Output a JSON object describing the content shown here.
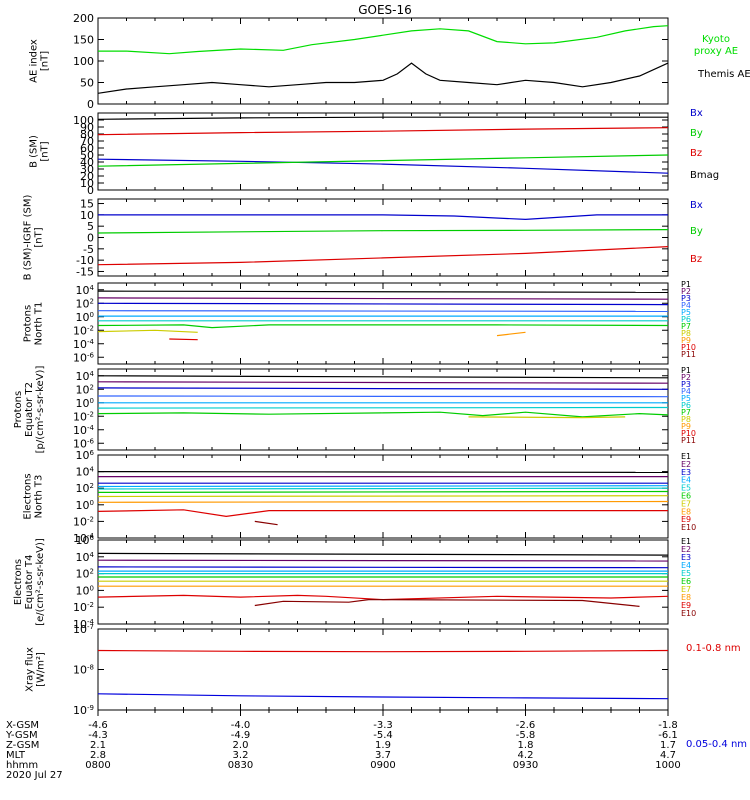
{
  "title": "GOES-16",
  "date_label": "2020 Jul 27",
  "x_axis": {
    "time_ticks": [
      "0800",
      "0830",
      "0900",
      "0930",
      "1000"
    ],
    "rows": [
      {
        "label": "X-GSM",
        "values": [
          "-4.6",
          "-4.0",
          "-3.3",
          "-2.6",
          "-1.8"
        ]
      },
      {
        "label": "Y-GSM",
        "values": [
          "-4.3",
          "-4.9",
          "-5.4",
          "-5.8",
          "-6.1"
        ]
      },
      {
        "label": "Z-GSM",
        "values": [
          "2.1",
          "2.0",
          "1.9",
          "1.8",
          "1.7"
        ]
      },
      {
        "label": "MLT",
        "values": [
          "2.8",
          "3.2",
          "3.7",
          "4.2",
          "4.7"
        ]
      },
      {
        "label": "hhmm",
        "values": [
          "0800",
          "0830",
          "0900",
          "0930",
          "1000"
        ]
      }
    ]
  },
  "chart_data": [
    {
      "type": "line",
      "id": "ae",
      "ylabel": [
        "AE index",
        "[nT]"
      ],
      "ylim": [
        0,
        200
      ],
      "yticks": [
        "0",
        "50",
        "100",
        "150",
        "200"
      ],
      "x_hours": [
        8.0,
        8.25,
        8.5,
        8.75,
        9.0,
        9.25,
        9.5,
        9.75,
        10.0
      ],
      "series": [
        {
          "name": "Kyoto proxy AE",
          "color": "#00dd00",
          "x": [
            8.0,
            8.1,
            8.25,
            8.35,
            8.5,
            8.65,
            8.75,
            8.9,
            9.0,
            9.1,
            9.2,
            9.3,
            9.4,
            9.5,
            9.6,
            9.75,
            9.85,
            9.95,
            10.0
          ],
          "y": [
            123,
            123,
            117,
            122,
            128,
            125,
            138,
            150,
            160,
            170,
            175,
            170,
            145,
            140,
            142,
            155,
            170,
            180,
            182
          ]
        },
        {
          "name": "Themis AE",
          "color": "#000000",
          "x": [
            8.0,
            8.1,
            8.2,
            8.3,
            8.4,
            8.5,
            8.6,
            8.7,
            8.8,
            8.9,
            9.0,
            9.05,
            9.1,
            9.15,
            9.2,
            9.3,
            9.4,
            9.5,
            9.6,
            9.7,
            9.8,
            9.9,
            10.0
          ],
          "y": [
            25,
            35,
            40,
            45,
            50,
            45,
            40,
            45,
            50,
            50,
            55,
            70,
            95,
            70,
            55,
            50,
            45,
            55,
            50,
            40,
            50,
            65,
            95
          ]
        }
      ]
    },
    {
      "type": "line",
      "id": "b_sm",
      "ylabel": [
        "B (SM)",
        "[nT]"
      ],
      "ylim": [
        0,
        110
      ],
      "yticks": [
        "0",
        "10",
        "20",
        "30",
        "40",
        "50",
        "60",
        "70",
        "80",
        "90",
        "100"
      ],
      "series": [
        {
          "name": "Bx",
          "color": "#0000cc",
          "x": [
            8.0,
            8.5,
            9.0,
            9.5,
            10.0
          ],
          "y": [
            44,
            41,
            37,
            31,
            24
          ]
        },
        {
          "name": "By",
          "color": "#00cc00",
          "x": [
            8.0,
            8.5,
            9.0,
            9.5,
            10.0
          ],
          "y": [
            34,
            38,
            42,
            46,
            50
          ]
        },
        {
          "name": "Bz",
          "color": "#dd0000",
          "x": [
            8.0,
            8.5,
            9.0,
            9.5,
            10.0
          ],
          "y": [
            79,
            82,
            84,
            87,
            89
          ]
        },
        {
          "name": "Bmag",
          "color": "#000000",
          "x": [
            8.0,
            8.5,
            9.0,
            9.5,
            10.0
          ],
          "y": [
            101,
            103,
            104,
            104,
            104
          ]
        }
      ]
    },
    {
      "type": "line",
      "id": "b_igrf",
      "ylabel": [
        "B (SM)-IGRF (SM)",
        "[nT]"
      ],
      "ylim": [
        -17,
        17
      ],
      "yticks": [
        "-15",
        "-10",
        "-5",
        "0",
        "5",
        "10",
        "15"
      ],
      "series": [
        {
          "name": "Bx",
          "color": "#0000cc",
          "x": [
            8.0,
            8.5,
            9.0,
            9.25,
            9.5,
            9.75,
            10.0
          ],
          "y": [
            10,
            10,
            10,
            9.5,
            8,
            10,
            10
          ]
        },
        {
          "name": "By",
          "color": "#00cc00",
          "x": [
            8.0,
            8.5,
            9.0,
            9.5,
            10.0
          ],
          "y": [
            2,
            2.5,
            3,
            3.2,
            3.5
          ]
        },
        {
          "name": "Bz",
          "color": "#dd0000",
          "x": [
            8.0,
            8.5,
            9.0,
            9.5,
            10.0
          ],
          "y": [
            -12,
            -11,
            -9,
            -7,
            -4
          ]
        }
      ]
    },
    {
      "type": "line",
      "id": "protons_t1",
      "ylabel": [
        "Protons",
        "North T1"
      ],
      "yscale": "log",
      "ylim": [
        -7,
        5
      ],
      "yticks": [
        "10^4",
        "10^2",
        "10^0",
        "10^-2",
        "10^-4",
        "10^-6"
      ],
      "series": [
        {
          "name": "P1",
          "color": "#000000",
          "x": [
            8.0,
            10.0
          ],
          "y": [
            3.8,
            3.6
          ]
        },
        {
          "name": "P2",
          "color": "#660066",
          "x": [
            8.0,
            10.0
          ],
          "y": [
            2.8,
            2.6
          ]
        },
        {
          "name": "P3",
          "color": "#0000cc",
          "x": [
            8.0,
            10.0
          ],
          "y": [
            2.0,
            1.8
          ]
        },
        {
          "name": "P4",
          "color": "#3366ff",
          "x": [
            8.0,
            10.0
          ],
          "y": [
            0.9,
            0.8
          ]
        },
        {
          "name": "P5",
          "color": "#00aaff",
          "x": [
            8.0,
            10.0
          ],
          "y": [
            0.1,
            0.1
          ]
        },
        {
          "name": "P6",
          "color": "#00cccc",
          "x": [
            8.0,
            10.0
          ],
          "y": [
            -0.6,
            -0.6
          ]
        },
        {
          "name": "P7",
          "color": "#00cc00",
          "x": [
            8.0,
            8.3,
            8.4,
            8.6,
            9.0,
            9.4,
            10.0
          ],
          "y": [
            -1.3,
            -1.2,
            -1.6,
            -1.2,
            -1.2,
            -1.2,
            -1.3
          ]
        },
        {
          "name": "P8",
          "color": "#cccc00",
          "x": [
            8.0,
            8.2,
            8.35
          ],
          "y": [
            -2.2,
            -2.0,
            -2.3
          ]
        },
        {
          "name": "P9",
          "color": "#ff9900",
          "x": [
            9.4,
            9.5
          ],
          "y": [
            -2.8,
            -2.3
          ]
        },
        {
          "name": "P10",
          "color": "#dd0000",
          "x": [
            8.25,
            8.35
          ],
          "y": [
            -3.3,
            -3.4
          ]
        },
        {
          "name": "P11",
          "color": "#880000",
          "x": [],
          "y": []
        }
      ]
    },
    {
      "type": "line",
      "id": "protons_t2",
      "ylabel": [
        "Protons",
        "Equator T2",
        "[p/(cm²-s-sr-keV)]"
      ],
      "yscale": "log",
      "ylim": [
        -7,
        5
      ],
      "yticks": [
        "10^4",
        "10^2",
        "10^0",
        "10^-2",
        "10^-4",
        "10^-6"
      ],
      "series": [
        {
          "name": "P1",
          "color": "#000000",
          "x": [
            8.0,
            10.0
          ],
          "y": [
            4.0,
            3.7
          ]
        },
        {
          "name": "P2",
          "color": "#660066",
          "x": [
            8.0,
            10.0
          ],
          "y": [
            3.1,
            2.9
          ]
        },
        {
          "name": "P3",
          "color": "#0000cc",
          "x": [
            8.0,
            10.0
          ],
          "y": [
            2.2,
            2.0
          ]
        },
        {
          "name": "P4",
          "color": "#3366ff",
          "x": [
            8.0,
            10.0
          ],
          "y": [
            1.0,
            0.9
          ]
        },
        {
          "name": "P5",
          "color": "#00aaff",
          "x": [
            8.0,
            10.0
          ],
          "y": [
            0.0,
            0.0
          ]
        },
        {
          "name": "P6",
          "color": "#00cccc",
          "x": [
            8.0,
            10.0
          ],
          "y": [
            -0.8,
            -0.7
          ]
        },
        {
          "name": "P7",
          "color": "#00cc00",
          "x": [
            8.0,
            8.3,
            8.6,
            9.0,
            9.2,
            9.35,
            9.5,
            9.7,
            9.9,
            10.0
          ],
          "y": [
            -1.6,
            -1.5,
            -1.7,
            -1.5,
            -1.4,
            -1.9,
            -1.4,
            -2.1,
            -1.6,
            -1.8
          ]
        },
        {
          "name": "P8",
          "color": "#cccc00",
          "x": [
            9.3,
            9.7,
            9.85
          ],
          "y": [
            -2.1,
            -2.2,
            -2.1
          ]
        },
        {
          "name": "P9",
          "color": "#ff9900",
          "x": [],
          "y": []
        },
        {
          "name": "P10",
          "color": "#dd0000",
          "x": [],
          "y": []
        },
        {
          "name": "P11",
          "color": "#880000",
          "x": [],
          "y": []
        }
      ]
    },
    {
      "type": "line",
      "id": "electrons_t3",
      "ylabel": [
        "Electrons",
        "North T3"
      ],
      "yscale": "log",
      "ylim": [
        -4,
        6
      ],
      "yticks": [
        "10^6",
        "10^4",
        "10^2",
        "10^0",
        "10^-2",
        "10^-4"
      ],
      "series": [
        {
          "name": "E1",
          "color": "#000000",
          "x": [
            8.0,
            10.0
          ],
          "y": [
            4.0,
            3.9
          ]
        },
        {
          "name": "E2",
          "color": "#660066",
          "x": [
            8.0,
            10.0
          ],
          "y": [
            3.4,
            3.4
          ]
        },
        {
          "name": "E3",
          "color": "#0000cc",
          "x": [
            8.0,
            10.0
          ],
          "y": [
            2.6,
            2.6
          ]
        },
        {
          "name": "E4",
          "color": "#00aaff",
          "x": [
            8.0,
            10.0
          ],
          "y": [
            2.2,
            2.3
          ]
        },
        {
          "name": "E5",
          "color": "#00cccc",
          "x": [
            8.0,
            10.0
          ],
          "y": [
            1.9,
            2.0
          ]
        },
        {
          "name": "E6",
          "color": "#00cc00",
          "x": [
            8.0,
            10.0
          ],
          "y": [
            1.5,
            1.6
          ]
        },
        {
          "name": "E7",
          "color": "#cccc00",
          "x": [
            8.0,
            10.0
          ],
          "y": [
            1.0,
            1.1
          ]
        },
        {
          "name": "E8",
          "color": "#ff9900",
          "x": [
            8.0,
            10.0
          ],
          "y": [
            0.3,
            0.4
          ]
        },
        {
          "name": "E9",
          "color": "#dd0000",
          "x": [
            8.0,
            8.3,
            8.45,
            8.6,
            9.0,
            9.4,
            10.0
          ],
          "y": [
            -0.8,
            -0.6,
            -1.4,
            -0.7,
            -0.7,
            -0.7,
            -0.7
          ]
        },
        {
          "name": "E10",
          "color": "#880000",
          "x": [
            8.55,
            8.63
          ],
          "y": [
            -2.0,
            -2.4
          ]
        }
      ]
    },
    {
      "type": "line",
      "id": "electrons_t4",
      "ylabel": [
        "Electrons",
        "Equator T4",
        "[e/(cm²-s-sr-keV)]"
      ],
      "yscale": "log",
      "ylim": [
        -4,
        6
      ],
      "yticks": [
        "10^6",
        "10^4",
        "10^2",
        "10^0",
        "10^-2",
        "10^-4"
      ],
      "series": [
        {
          "name": "E1",
          "color": "#000000",
          "x": [
            8.0,
            10.0
          ],
          "y": [
            4.4,
            4.2
          ]
        },
        {
          "name": "E2",
          "color": "#660066",
          "x": [
            8.0,
            10.0
          ],
          "y": [
            3.6,
            3.5
          ]
        },
        {
          "name": "E3",
          "color": "#0000cc",
          "x": [
            8.0,
            10.0
          ],
          "y": [
            2.8,
            2.7
          ]
        },
        {
          "name": "E4",
          "color": "#00aaff",
          "x": [
            8.0,
            10.0
          ],
          "y": [
            2.3,
            2.3
          ]
        },
        {
          "name": "E5",
          "color": "#00cccc",
          "x": [
            8.0,
            10.0
          ],
          "y": [
            2.0,
            2.0
          ]
        },
        {
          "name": "E6",
          "color": "#00cc00",
          "x": [
            8.0,
            10.0
          ],
          "y": [
            1.6,
            1.6
          ]
        },
        {
          "name": "E7",
          "color": "#cccc00",
          "x": [
            8.0,
            10.0
          ],
          "y": [
            1.1,
            1.1
          ]
        },
        {
          "name": "E8",
          "color": "#ff9900",
          "x": [
            8.0,
            10.0
          ],
          "y": [
            0.5,
            0.5
          ]
        },
        {
          "name": "E9",
          "color": "#dd0000",
          "x": [
            8.0,
            8.3,
            8.5,
            8.7,
            8.8,
            9.0,
            9.4,
            9.8,
            10.0
          ],
          "y": [
            -0.8,
            -0.6,
            -0.8,
            -0.6,
            -0.7,
            -1.1,
            -0.7,
            -0.9,
            -0.7
          ]
        },
        {
          "name": "E10",
          "color": "#880000",
          "x": [
            8.55,
            8.65,
            8.88,
            8.95,
            9.7,
            9.9
          ],
          "y": [
            -1.8,
            -1.3,
            -1.4,
            -1.1,
            -1.2,
            -1.9
          ]
        }
      ]
    },
    {
      "type": "line",
      "id": "xray",
      "ylabel": [
        "Xray flux",
        "[W/m²]"
      ],
      "yscale": "log",
      "ylim": [
        -9,
        -7
      ],
      "yticks": [
        "10^-7",
        "10^-8",
        "10^-9"
      ],
      "series": [
        {
          "name": "0.1-0.8 nm",
          "color": "#dd0000",
          "x": [
            8.0,
            8.5,
            9.0,
            9.5,
            10.0
          ],
          "y": [
            -7.53,
            -7.55,
            -7.56,
            -7.55,
            -7.53
          ]
        },
        {
          "name": "0.05-0.4 nm",
          "color": "#0000dd",
          "x": [
            8.0,
            8.5,
            9.0,
            9.5,
            10.0
          ],
          "y": [
            -8.6,
            -8.65,
            -8.68,
            -8.7,
            -8.72
          ]
        }
      ]
    }
  ]
}
